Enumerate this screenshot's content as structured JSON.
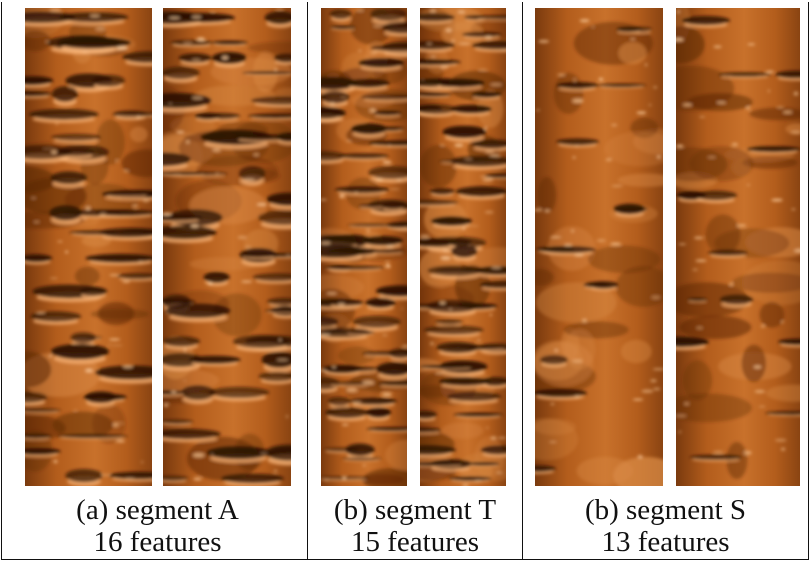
{
  "panels": [
    {
      "label": "(a) segment A",
      "features": "16 features"
    },
    {
      "label": "(b) segment T",
      "features": "15 features"
    },
    {
      "label": "(b) segment S",
      "features": "13 features"
    }
  ],
  "colors": {
    "base": "#b35d1c",
    "dark": "#2a1204",
    "highlight": "#f7b377"
  }
}
